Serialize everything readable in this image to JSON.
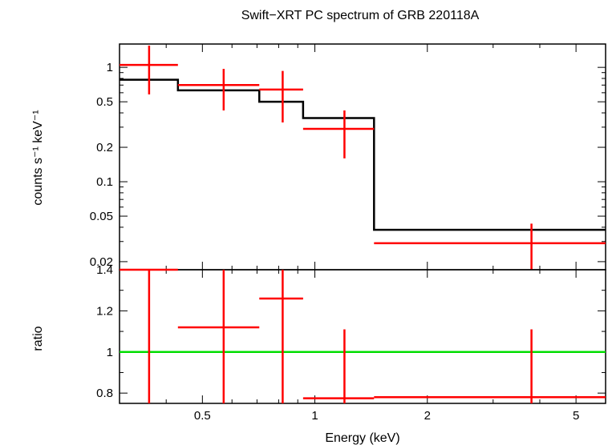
{
  "chart_data": [
    {
      "type": "line",
      "title": "Swift−XRT PC spectrum of GRB 220118A",
      "ylabel": "counts s⁻¹ keV⁻¹",
      "yscale": "log",
      "xscale": "log",
      "xlim": [
        0.3,
        6.0
      ],
      "ylim": [
        0.017,
        1.6
      ],
      "yticks": [
        {
          "value": 1,
          "label": "1"
        },
        {
          "value": 0.5,
          "label": "0.5"
        },
        {
          "value": 0.2,
          "label": "0.2"
        },
        {
          "value": 0.1,
          "label": "0.1"
        },
        {
          "value": 0.05,
          "label": "0.05"
        },
        {
          "value": 0.02,
          "label": "0.02"
        }
      ],
      "series": [
        {
          "kind": "data",
          "color": "#ff0000",
          "points": [
            {
              "x": 0.36,
              "xlo": 0.3,
              "xhi": 0.43,
              "y": 1.05,
              "ylo": 0.58,
              "yhi": 1.55
            },
            {
              "x": 0.57,
              "xlo": 0.43,
              "xhi": 0.71,
              "y": 0.7,
              "ylo": 0.42,
              "yhi": 0.97
            },
            {
              "x": 0.82,
              "xlo": 0.71,
              "xhi": 0.93,
              "y": 0.64,
              "ylo": 0.33,
              "yhi": 0.93
            },
            {
              "x": 1.2,
              "xlo": 0.93,
              "xhi": 1.44,
              "y": 0.29,
              "ylo": 0.16,
              "yhi": 0.42
            },
            {
              "x": 3.8,
              "xlo": 1.44,
              "xhi": 6.0,
              "y": 0.029,
              "ylo": 0.017,
              "yhi": 0.043
            }
          ]
        },
        {
          "kind": "model",
          "color": "#000000",
          "steps": [
            {
              "xlo": 0.3,
              "xhi": 0.43,
              "y": 0.78
            },
            {
              "xlo": 0.43,
              "xhi": 0.71,
              "y": 0.63
            },
            {
              "xlo": 0.71,
              "xhi": 0.93,
              "y": 0.5
            },
            {
              "xlo": 0.93,
              "xhi": 1.44,
              "y": 0.36
            },
            {
              "xlo": 1.44,
              "xhi": 6.0,
              "y": 0.038
            }
          ]
        }
      ]
    },
    {
      "type": "scatter",
      "ylabel": "ratio",
      "xlabel": "Energy (keV)",
      "xscale": "log",
      "xlim": [
        0.3,
        6.0
      ],
      "ylim": [
        0.75,
        1.4
      ],
      "xticks": [
        {
          "value": 0.5,
          "label": "0.5"
        },
        {
          "value": 1,
          "label": "1"
        },
        {
          "value": 2,
          "label": "2"
        },
        {
          "value": 5,
          "label": "5"
        }
      ],
      "yticks": [
        {
          "value": 1.4,
          "label": "1.4"
        },
        {
          "value": 1.2,
          "label": "1.2"
        },
        {
          "value": 1,
          "label": "1"
        },
        {
          "value": 0.8,
          "label": "0.8"
        }
      ],
      "reference_line": {
        "y": 1,
        "color": "#00dd00"
      },
      "series": [
        {
          "kind": "ratio",
          "color": "#ff0000",
          "points": [
            {
              "x": 0.36,
              "xlo": 0.3,
              "xhi": 0.43,
              "y": 1.4,
              "ylo": 0.75,
              "yhi": 1.4
            },
            {
              "x": 0.57,
              "xlo": 0.43,
              "xhi": 0.71,
              "y": 1.12,
              "ylo": 0.75,
              "yhi": 1.4
            },
            {
              "x": 0.82,
              "xlo": 0.71,
              "xhi": 0.93,
              "y": 1.26,
              "ylo": 0.75,
              "yhi": 1.4
            },
            {
              "x": 1.2,
              "xlo": 0.93,
              "xhi": 1.44,
              "y": 0.775,
              "ylo": 0.75,
              "yhi": 1.11
            },
            {
              "x": 3.8,
              "xlo": 1.44,
              "xhi": 6.0,
              "y": 0.78,
              "ylo": 0.75,
              "yhi": 1.11
            }
          ]
        }
      ]
    }
  ]
}
